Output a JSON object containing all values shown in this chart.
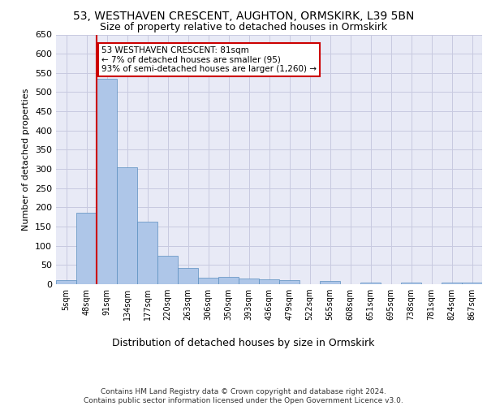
{
  "title_line1": "53, WESTHAVEN CRESCENT, AUGHTON, ORMSKIRK, L39 5BN",
  "title_line2": "Size of property relative to detached houses in Ormskirk",
  "xlabel": "Distribution of detached houses by size in Ormskirk",
  "ylabel": "Number of detached properties",
  "footnote": "Contains HM Land Registry data © Crown copyright and database right 2024.\nContains public sector information licensed under the Open Government Licence v3.0.",
  "categories": [
    "5sqm",
    "48sqm",
    "91sqm",
    "134sqm",
    "177sqm",
    "220sqm",
    "263sqm",
    "306sqm",
    "350sqm",
    "393sqm",
    "436sqm",
    "479sqm",
    "522sqm",
    "565sqm",
    "608sqm",
    "651sqm",
    "695sqm",
    "738sqm",
    "781sqm",
    "824sqm",
    "867sqm"
  ],
  "values": [
    10,
    185,
    535,
    305,
    163,
    75,
    42,
    17,
    20,
    14,
    12,
    10,
    0,
    8,
    0,
    5,
    0,
    5,
    0,
    5,
    5
  ],
  "bar_color": "#aec6e8",
  "bar_edge_color": "#5a8fc0",
  "marker_label": "53 WESTHAVEN CRESCENT: 81sqm",
  "marker_subtext1": "← 7% of detached houses are smaller (95)",
  "marker_subtext2": "93% of semi-detached houses are larger (1,260) →",
  "annotation_box_color": "#ffffff",
  "annotation_border_color": "#cc0000",
  "marker_line_color": "#cc0000",
  "ylim": [
    0,
    650
  ],
  "yticks": [
    0,
    50,
    100,
    150,
    200,
    250,
    300,
    350,
    400,
    450,
    500,
    550,
    600,
    650
  ],
  "grid_color": "#c8cae0",
  "background_color": "#e8eaf6",
  "title_fontsize": 10,
  "subtitle_fontsize": 9,
  "footnote_fontsize": 6.5,
  "xlabel_fontsize": 9,
  "ylabel_fontsize": 8
}
